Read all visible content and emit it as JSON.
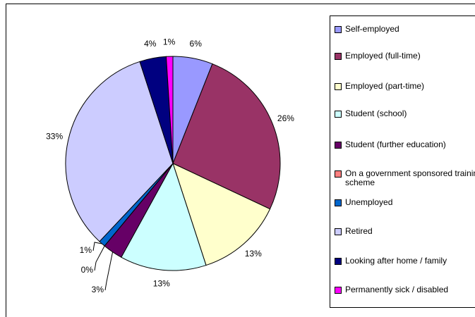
{
  "chart_data": {
    "type": "pie",
    "categories": [
      "Self-employed",
      "Employed (full-time)",
      "Employed (part-time)",
      "Student (school)",
      "Student (further education)",
      "On a government sponsored training scheme",
      "Unemployed",
      "Retired",
      "Looking after home / family",
      "Permanently sick / disabled"
    ],
    "values": [
      6,
      26,
      13,
      13,
      3,
      0,
      1,
      33,
      4,
      1
    ],
    "value_labels": [
      "6%",
      "26%",
      "13%",
      "13%",
      "3%",
      "0%",
      "1%",
      "33%",
      "4%",
      "1%"
    ],
    "colors": [
      "#9999ff",
      "#993366",
      "#ffffcc",
      "#ccffff",
      "#660066",
      "#ff8080",
      "#0066cc",
      "#ccccff",
      "#000080",
      "#ff00ff"
    ]
  }
}
